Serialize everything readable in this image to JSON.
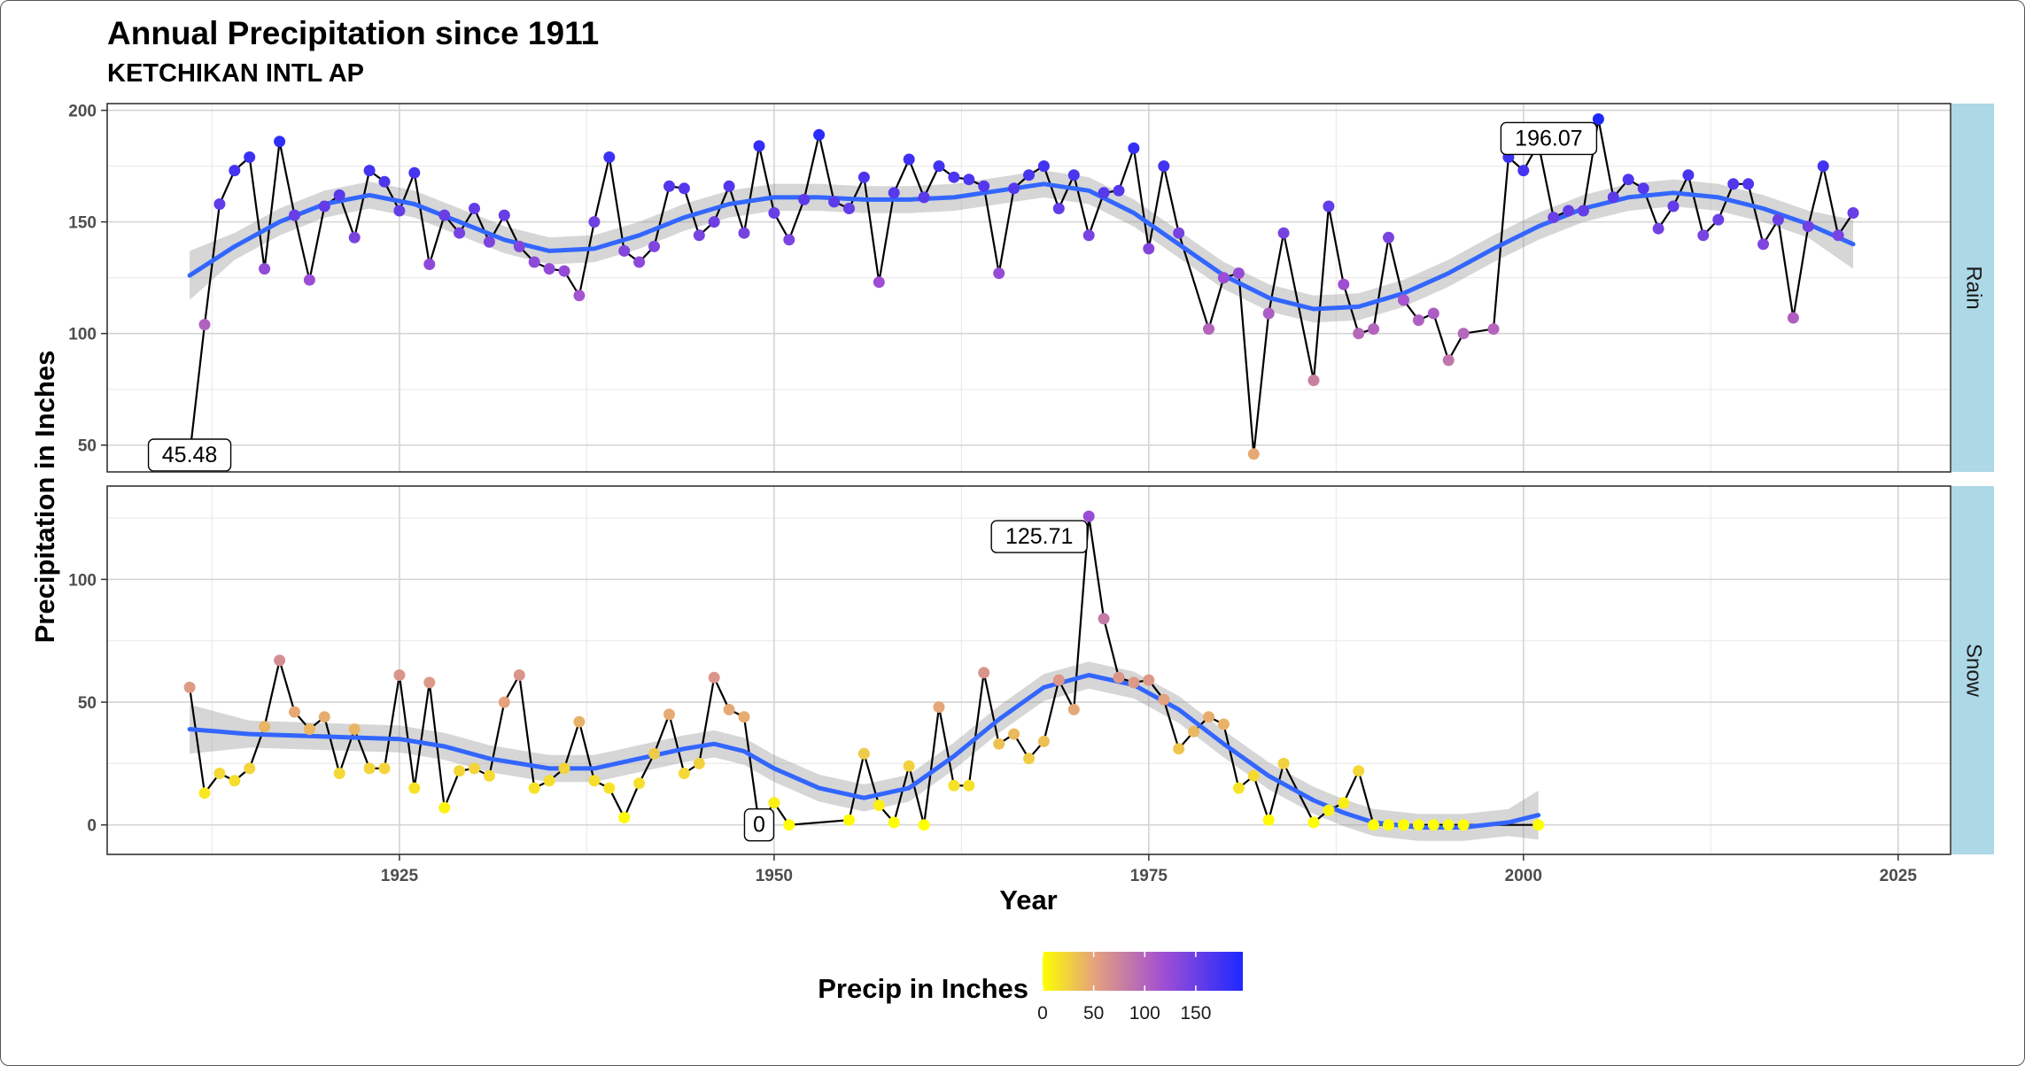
{
  "title": "Annual Precipitation since 1911",
  "subtitle": "KETCHIKAN INTL AP",
  "chart_data": {
    "type": "line",
    "title": "Annual Precipitation since 1911",
    "subtitle": "KETCHIKAN INTL AP",
    "xlabel": "Year",
    "ylabel": "Precipitation in Inches",
    "xlim": [
      1905.5,
      2028.5
    ],
    "x_ticks": [
      1925,
      1950,
      1975,
      2000,
      2025
    ],
    "grid": true,
    "smoother": "loess with confidence band",
    "legend": {
      "title": "Precip in Inches",
      "position": "bottom",
      "ticks": [
        0,
        50,
        100,
        150
      ],
      "range": [
        0,
        196.07
      ],
      "colors": [
        "#ffff00",
        "#e4a27d",
        "#a24fd3",
        "#1d28ff"
      ]
    },
    "panels": [
      {
        "name": "Rain",
        "ylim": [
          38,
          203
        ],
        "y_ticks": [
          50,
          100,
          150,
          200
        ],
        "points": [
          [
            1911,
            45.48
          ],
          [
            1912,
            104
          ],
          [
            1913,
            158
          ],
          [
            1914,
            173
          ],
          [
            1915,
            179
          ],
          [
            1916,
            129
          ],
          [
            1917,
            186
          ],
          [
            1918,
            153
          ],
          [
            1919,
            124
          ],
          [
            1920,
            157
          ],
          [
            1921,
            162
          ],
          [
            1922,
            143
          ],
          [
            1923,
            173
          ],
          [
            1924,
            168
          ],
          [
            1925,
            155
          ],
          [
            1926,
            172
          ],
          [
            1927,
            131
          ],
          [
            1928,
            153
          ],
          [
            1929,
            145
          ],
          [
            1930,
            156
          ],
          [
            1931,
            141
          ],
          [
            1932,
            153
          ],
          [
            1933,
            139
          ],
          [
            1934,
            132
          ],
          [
            1935,
            129
          ],
          [
            1936,
            128
          ],
          [
            1937,
            117
          ],
          [
            1938,
            150
          ],
          [
            1939,
            179
          ],
          [
            1940,
            137
          ],
          [
            1941,
            132
          ],
          [
            1942,
            139
          ],
          [
            1943,
            166
          ],
          [
            1944,
            165
          ],
          [
            1945,
            144
          ],
          [
            1946,
            150
          ],
          [
            1947,
            166
          ],
          [
            1948,
            145
          ],
          [
            1949,
            184
          ],
          [
            1950,
            154
          ],
          [
            1951,
            142
          ],
          [
            1952,
            160
          ],
          [
            1953,
            189
          ],
          [
            1954,
            159
          ],
          [
            1955,
            156
          ],
          [
            1956,
            170
          ],
          [
            1957,
            123
          ],
          [
            1958,
            163
          ],
          [
            1959,
            178
          ],
          [
            1960,
            161
          ],
          [
            1961,
            175
          ],
          [
            1962,
            170
          ],
          [
            1963,
            169
          ],
          [
            1964,
            166
          ],
          [
            1965,
            127
          ],
          [
            1966,
            165
          ],
          [
            1967,
            171
          ],
          [
            1968,
            175
          ],
          [
            1969,
            156
          ],
          [
            1970,
            171
          ],
          [
            1971,
            144
          ],
          [
            1972,
            163
          ],
          [
            1973,
            164
          ],
          [
            1974,
            183
          ],
          [
            1975,
            138
          ],
          [
            1976,
            175
          ],
          [
            1977,
            145
          ],
          [
            1979,
            102
          ],
          [
            1980,
            125
          ],
          [
            1981,
            127
          ],
          [
            1982,
            46
          ],
          [
            1983,
            109
          ],
          [
            1984,
            145
          ],
          [
            1986,
            79
          ],
          [
            1987,
            157
          ],
          [
            1988,
            122
          ],
          [
            1989,
            100
          ],
          [
            1990,
            102
          ],
          [
            1991,
            143
          ],
          [
            1992,
            115
          ],
          [
            1993,
            106
          ],
          [
            1994,
            109
          ],
          [
            1995,
            88
          ],
          [
            1996,
            100
          ],
          [
            1998,
            102
          ],
          [
            1999,
            179
          ],
          [
            2000,
            173
          ],
          [
            2001,
            185
          ],
          [
            2002,
            152
          ],
          [
            2003,
            155
          ],
          [
            2004,
            155
          ],
          [
            2005,
            196.07
          ],
          [
            2006,
            161
          ],
          [
            2007,
            169
          ],
          [
            2008,
            165
          ],
          [
            2009,
            147
          ],
          [
            2010,
            157
          ],
          [
            2011,
            171
          ],
          [
            2012,
            144
          ],
          [
            2013,
            151
          ],
          [
            2014,
            167
          ],
          [
            2015,
            167
          ],
          [
            2016,
            140
          ],
          [
            2017,
            151
          ],
          [
            2018,
            107
          ],
          [
            2019,
            148
          ],
          [
            2020,
            175
          ],
          [
            2021,
            144
          ],
          [
            2022,
            154
          ]
        ],
        "smooth": [
          [
            1911,
            126
          ],
          [
            1914,
            139
          ],
          [
            1917,
            150
          ],
          [
            1920,
            158
          ],
          [
            1923,
            162
          ],
          [
            1926,
            158
          ],
          [
            1929,
            150
          ],
          [
            1932,
            142
          ],
          [
            1935,
            137
          ],
          [
            1938,
            138
          ],
          [
            1941,
            144
          ],
          [
            1944,
            152
          ],
          [
            1947,
            158
          ],
          [
            1950,
            161
          ],
          [
            1953,
            161
          ],
          [
            1956,
            160
          ],
          [
            1959,
            160
          ],
          [
            1962,
            161
          ],
          [
            1965,
            164
          ],
          [
            1968,
            167
          ],
          [
            1971,
            164
          ],
          [
            1974,
            154
          ],
          [
            1977,
            140
          ],
          [
            1980,
            126
          ],
          [
            1983,
            116
          ],
          [
            1986,
            111
          ],
          [
            1989,
            112
          ],
          [
            1992,
            118
          ],
          [
            1995,
            127
          ],
          [
            1998,
            138
          ],
          [
            2001,
            148
          ],
          [
            2004,
            156
          ],
          [
            2007,
            161
          ],
          [
            2010,
            163
          ],
          [
            2013,
            161
          ],
          [
            2016,
            156
          ],
          [
            2019,
            149
          ],
          [
            2022,
            140
          ]
        ],
        "labels": [
          [
            1911,
            45.48,
            "45.48"
          ],
          [
            2005,
            196.07,
            "196.07"
          ]
        ]
      },
      {
        "name": "Snow",
        "ylim": [
          -12,
          138
        ],
        "y_ticks": [
          0,
          50,
          100
        ],
        "points": [
          [
            1911,
            56
          ],
          [
            1912,
            13
          ],
          [
            1913,
            21
          ],
          [
            1914,
            18
          ],
          [
            1915,
            23
          ],
          [
            1916,
            40
          ],
          [
            1917,
            67
          ],
          [
            1918,
            46
          ],
          [
            1919,
            39
          ],
          [
            1920,
            44
          ],
          [
            1921,
            21
          ],
          [
            1922,
            39
          ],
          [
            1923,
            23
          ],
          [
            1924,
            23
          ],
          [
            1925,
            61
          ],
          [
            1926,
            15
          ],
          [
            1927,
            58
          ],
          [
            1928,
            7
          ],
          [
            1929,
            22
          ],
          [
            1930,
            23
          ],
          [
            1931,
            20
          ],
          [
            1932,
            50
          ],
          [
            1933,
            61
          ],
          [
            1934,
            15
          ],
          [
            1935,
            18
          ],
          [
            1936,
            23
          ],
          [
            1937,
            42
          ],
          [
            1938,
            18
          ],
          [
            1939,
            15
          ],
          [
            1940,
            3
          ],
          [
            1941,
            17
          ],
          [
            1942,
            29
          ],
          [
            1943,
            45
          ],
          [
            1944,
            21
          ],
          [
            1945,
            25
          ],
          [
            1946,
            60
          ],
          [
            1947,
            47
          ],
          [
            1948,
            44
          ],
          [
            1949,
            0
          ],
          [
            1950,
            9
          ],
          [
            1951,
            0
          ],
          [
            1955,
            2
          ],
          [
            1956,
            29
          ],
          [
            1957,
            8
          ],
          [
            1958,
            1
          ],
          [
            1959,
            24
          ],
          [
            1960,
            0
          ],
          [
            1961,
            48
          ],
          [
            1962,
            16
          ],
          [
            1963,
            16
          ],
          [
            1964,
            62
          ],
          [
            1965,
            33
          ],
          [
            1966,
            37
          ],
          [
            1967,
            27
          ],
          [
            1968,
            34
          ],
          [
            1969,
            59
          ],
          [
            1970,
            47
          ],
          [
            1971,
            125.71
          ],
          [
            1972,
            84
          ],
          [
            1973,
            60
          ],
          [
            1974,
            58
          ],
          [
            1975,
            59
          ],
          [
            1976,
            51
          ],
          [
            1977,
            31
          ],
          [
            1978,
            38
          ],
          [
            1979,
            44
          ],
          [
            1980,
            41
          ],
          [
            1981,
            15
          ],
          [
            1982,
            20
          ],
          [
            1983,
            2
          ],
          [
            1984,
            25
          ],
          [
            1986,
            1
          ],
          [
            1987,
            6
          ],
          [
            1988,
            9
          ],
          [
            1989,
            22
          ],
          [
            1990,
            0
          ],
          [
            1991,
            0
          ],
          [
            1992,
            0
          ],
          [
            1993,
            0
          ],
          [
            1994,
            0
          ],
          [
            1995,
            0
          ],
          [
            1996,
            0
          ],
          [
            2001,
            0
          ]
        ],
        "smooth": [
          [
            1911,
            39
          ],
          [
            1915,
            37
          ],
          [
            1920,
            36
          ],
          [
            1925,
            35
          ],
          [
            1928,
            32
          ],
          [
            1931,
            27
          ],
          [
            1935,
            23
          ],
          [
            1938,
            23
          ],
          [
            1941,
            27
          ],
          [
            1944,
            31
          ],
          [
            1946,
            33
          ],
          [
            1948,
            30
          ],
          [
            1950,
            23
          ],
          [
            1953,
            15
          ],
          [
            1956,
            11
          ],
          [
            1959,
            15
          ],
          [
            1962,
            28
          ],
          [
            1965,
            43
          ],
          [
            1968,
            56
          ],
          [
            1971,
            61
          ],
          [
            1974,
            57
          ],
          [
            1977,
            47
          ],
          [
            1980,
            33
          ],
          [
            1983,
            20
          ],
          [
            1986,
            10
          ],
          [
            1988,
            5
          ],
          [
            1990,
            1
          ],
          [
            1993,
            -1
          ],
          [
            1996,
            -1
          ],
          [
            1999,
            1
          ],
          [
            2001,
            4
          ]
        ],
        "labels": [
          [
            1971,
            125.71,
            "125.71"
          ],
          [
            1949,
            0,
            "0"
          ]
        ]
      }
    ]
  }
}
